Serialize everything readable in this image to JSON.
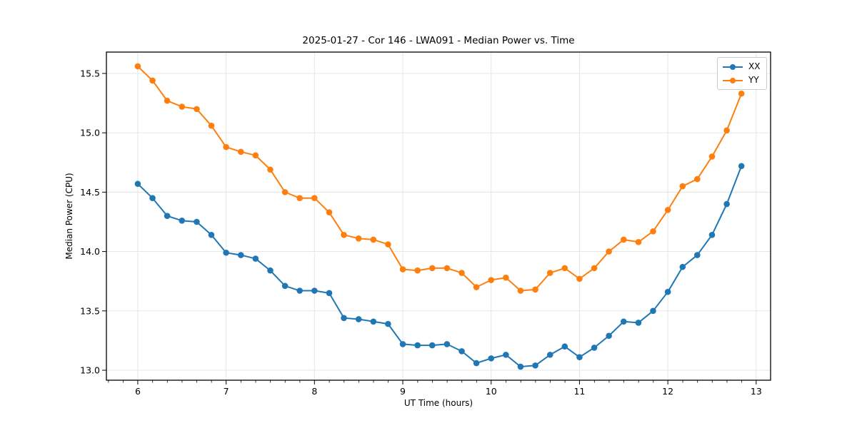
{
  "figure": {
    "background": "#ffffff",
    "spine_color": "#000000",
    "grid_color": "#e3e3e3"
  },
  "chart_data": {
    "type": "line",
    "title": "2025-01-27 - Cor 146 - LWA091 - Median Power vs. Time",
    "xlabel": "UT Time (hours)",
    "ylabel": "Median Power (CPU)",
    "xlim": [
      5.645,
      13.163
    ],
    "ylim": [
      12.916,
      15.68
    ],
    "xticks": [
      6,
      7,
      8,
      9,
      10,
      11,
      12,
      13
    ],
    "yticks": [
      13.0,
      13.5,
      14.0,
      14.5,
      15.0,
      15.5
    ],
    "minor_xtick_interval": 0.1667,
    "grid": true,
    "legend_position": "upper right",
    "x": [
      6.0,
      6.167,
      6.333,
      6.5,
      6.667,
      6.833,
      7.0,
      7.167,
      7.333,
      7.5,
      7.667,
      7.833,
      8.0,
      8.167,
      8.333,
      8.5,
      8.667,
      8.833,
      9.0,
      9.167,
      9.333,
      9.5,
      9.667,
      9.833,
      10.0,
      10.167,
      10.333,
      10.5,
      10.667,
      10.833,
      11.0,
      11.167,
      11.333,
      11.5,
      11.667,
      11.833,
      12.0,
      12.167,
      12.333,
      12.5,
      12.667,
      12.833
    ],
    "series": [
      {
        "name": "XX",
        "color": "#1f77b4",
        "values": [
          14.57,
          14.45,
          14.3,
          14.26,
          14.25,
          14.14,
          13.99,
          13.97,
          13.94,
          13.84,
          13.71,
          13.67,
          13.67,
          13.65,
          13.44,
          13.43,
          13.41,
          13.39,
          13.22,
          13.21,
          13.21,
          13.22,
          13.16,
          13.06,
          13.1,
          13.13,
          13.03,
          13.04,
          13.13,
          13.2,
          13.11,
          13.19,
          13.29,
          13.41,
          13.4,
          13.5,
          13.66,
          13.87,
          13.97,
          14.14,
          14.4,
          14.72
        ]
      },
      {
        "name": "YY",
        "color": "#ff7f0e",
        "values": [
          15.56,
          15.44,
          15.27,
          15.22,
          15.2,
          15.06,
          14.88,
          14.84,
          14.81,
          14.69,
          14.5,
          14.45,
          14.45,
          14.33,
          14.14,
          14.11,
          14.1,
          14.06,
          13.85,
          13.84,
          13.86,
          13.86,
          13.82,
          13.7,
          13.76,
          13.78,
          13.67,
          13.68,
          13.82,
          13.86,
          13.77,
          13.86,
          14.0,
          14.1,
          14.08,
          14.17,
          14.35,
          14.55,
          14.61,
          14.8,
          15.02,
          15.33
        ]
      }
    ]
  }
}
